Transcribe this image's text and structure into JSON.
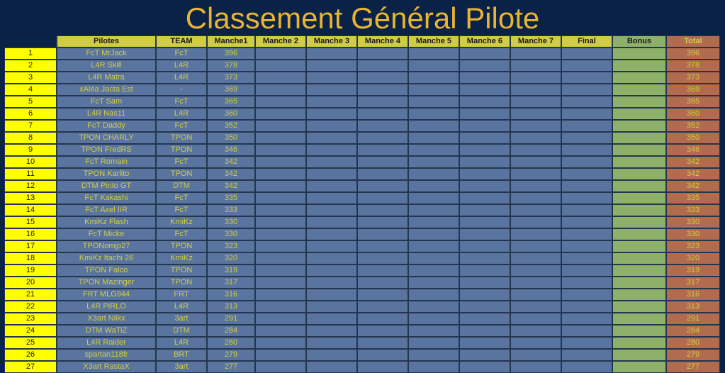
{
  "title": "Classement Général Pilote",
  "table": {
    "type": "table",
    "background_color": "#0a2245",
    "title_color": "#e8b432",
    "title_fontsize": 42,
    "cell_fontsize": 11,
    "border_color": "#23354f",
    "colors": {
      "header_bg": "#d0cd42",
      "header_fg": "#1a1a1a",
      "rank_bg": "#ffff00",
      "rank_fg": "#1a1a1a",
      "data_bg": "#5a74a0",
      "data_fg": "#d0cd42",
      "bonus_bg": "#8eb16a",
      "total_bg": "#b36b4f",
      "total_fg": "#d0cd42"
    },
    "columns": [
      "",
      "Pilotes",
      "TEAM",
      "Manche1",
      "Manche 2",
      "Manche 3",
      "Manche 4",
      "Manche 5",
      "Manche 6",
      "Manche 7",
      "Final",
      "Bonus",
      "Total"
    ],
    "rows": [
      {
        "rank": 1,
        "pilote": "FcT MrJack",
        "team": "FcT",
        "m1": 396,
        "total": 396
      },
      {
        "rank": 2,
        "pilote": "L4R Skill",
        "team": "L4R",
        "m1": 378,
        "total": 378
      },
      {
        "rank": 3,
        "pilote": "L4R Matra",
        "team": "L4R",
        "m1": 373,
        "total": 373
      },
      {
        "rank": 4,
        "pilote": "xAléa Jacta Est",
        "team": "-",
        "m1": 369,
        "total": 369
      },
      {
        "rank": 5,
        "pilote": "FcT Sam",
        "team": "FcT",
        "m1": 365,
        "total": 365
      },
      {
        "rank": 6,
        "pilote": "L4R Nas11",
        "team": "L4R",
        "m1": 360,
        "total": 360
      },
      {
        "rank": 7,
        "pilote": "FcT Daddy",
        "team": "FcT",
        "m1": 352,
        "total": 352
      },
      {
        "rank": 8,
        "pilote": "TPON CHARLY",
        "team": "TPON",
        "m1": 350,
        "total": 350
      },
      {
        "rank": 9,
        "pilote": "TPON FredRS",
        "team": "TPON",
        "m1": 346,
        "total": 346
      },
      {
        "rank": 10,
        "pilote": "FcT Romain",
        "team": "FcT",
        "m1": 342,
        "total": 342
      },
      {
        "rank": 11,
        "pilote": "TPON Karlito",
        "team": "TPON",
        "m1": 342,
        "total": 342
      },
      {
        "rank": 12,
        "pilote": "DTM Pinto GT",
        "team": "DTM",
        "m1": 342,
        "total": 342
      },
      {
        "rank": 13,
        "pilote": "FcT Kakashi",
        "team": "FcT",
        "m1": 335,
        "total": 335
      },
      {
        "rank": 14,
        "pilote": "FcT Axel IIR",
        "team": "FcT",
        "m1": 333,
        "total": 333
      },
      {
        "rank": 15,
        "pilote": "KmiKz Flash",
        "team": "KmiKz",
        "m1": 330,
        "total": 330
      },
      {
        "rank": 16,
        "pilote": "FcT Micke",
        "team": "FcT",
        "m1": 330,
        "total": 330
      },
      {
        "rank": 17,
        "pilote": "TPONomjp27",
        "team": "TPON",
        "m1": 323,
        "total": 323
      },
      {
        "rank": 18,
        "pilote": "KmiKz Itachi 26",
        "team": "KmiKz",
        "m1": 320,
        "total": 320
      },
      {
        "rank": 19,
        "pilote": "TPON Falco",
        "team": "TPON",
        "m1": 319,
        "total": 319
      },
      {
        "rank": 20,
        "pilote": "TPON Mazinger",
        "team": "TPON",
        "m1": 317,
        "total": 317
      },
      {
        "rank": 21,
        "pilote": "FRT MLG944",
        "team": "FRT",
        "m1": 316,
        "total": 316
      },
      {
        "rank": 22,
        "pilote": "L4R PiRLO",
        "team": "L4R",
        "m1": 313,
        "total": 313
      },
      {
        "rank": 23,
        "pilote": "X3art Niikx",
        "team": "3art",
        "m1": 291,
        "total": 291
      },
      {
        "rank": 24,
        "pilote": "DTM WaTiZ",
        "team": "DTM",
        "m1": 284,
        "total": 284
      },
      {
        "rank": 25,
        "pilote": "L4R Raider",
        "team": "L4R",
        "m1": 280,
        "total": 280
      },
      {
        "rank": 26,
        "pilote": "spartan118fr",
        "team": "BRT",
        "m1": 279,
        "total": 279
      },
      {
        "rank": 27,
        "pilote": "X3art RastaX",
        "team": "3art",
        "m1": 277,
        "total": 277
      }
    ]
  }
}
